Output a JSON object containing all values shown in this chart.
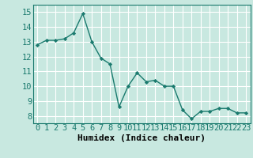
{
  "x": [
    0,
    1,
    2,
    3,
    4,
    5,
    6,
    7,
    8,
    9,
    10,
    11,
    12,
    13,
    14,
    15,
    16,
    17,
    18,
    19,
    20,
    21,
    22,
    23
  ],
  "y": [
    12.8,
    13.1,
    13.1,
    13.2,
    13.6,
    14.9,
    13.0,
    11.9,
    11.5,
    8.6,
    10.0,
    10.9,
    10.3,
    10.4,
    10.0,
    10.0,
    8.4,
    7.8,
    8.3,
    8.3,
    8.5,
    8.5,
    8.2,
    8.2
  ],
  "line_color": "#1a7a6e",
  "marker_color": "#1a7a6e",
  "bg_color": "#c8e8e0",
  "grid_color": "#ffffff",
  "xlabel": "Humidex (Indice chaleur)",
  "xlabel_fontsize": 8,
  "xlim": [
    -0.5,
    23.5
  ],
  "ylim": [
    7.5,
    15.5
  ],
  "yticks": [
    8,
    9,
    10,
    11,
    12,
    13,
    14,
    15
  ],
  "xticks": [
    0,
    1,
    2,
    3,
    4,
    5,
    6,
    7,
    8,
    9,
    10,
    11,
    12,
    13,
    14,
    15,
    16,
    17,
    18,
    19,
    20,
    21,
    22,
    23
  ],
  "tick_fontsize": 7.5
}
